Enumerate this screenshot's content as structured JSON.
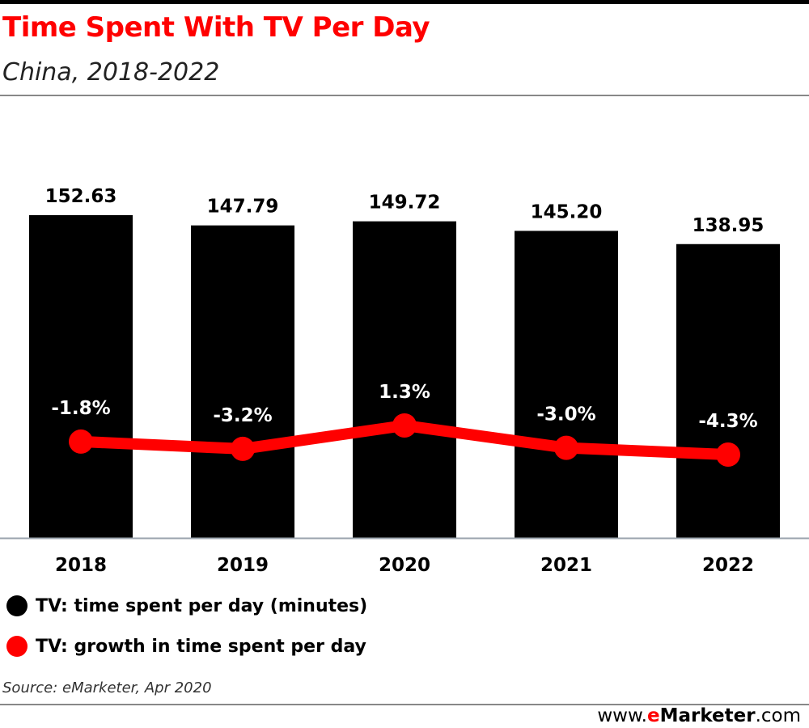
{
  "header": {
    "title": "Time Spent With TV Per Day",
    "subtitle": "China, 2018-2022"
  },
  "chart_data": {
    "type": "bar",
    "categories": [
      "2018",
      "2019",
      "2020",
      "2021",
      "2022"
    ],
    "series": [
      {
        "name": "TV: time spent per day (minutes)",
        "type": "bar",
        "values": [
          152.63,
          147.79,
          149.72,
          145.2,
          138.95
        ],
        "labels": [
          "152.63",
          "147.79",
          "149.72",
          "145.20",
          "138.95"
        ],
        "color": "#000000"
      },
      {
        "name": "TV: growth in time spent per day",
        "type": "line",
        "values": [
          -1.8,
          -3.2,
          1.3,
          -3.0,
          -4.3
        ],
        "labels": [
          "-1.8%",
          "-3.2%",
          "1.3%",
          "-3.0%",
          "-4.3%"
        ],
        "color": "#ff0000"
      }
    ],
    "ylim_bar": [
      0,
      152.63
    ],
    "ylim_line": [
      -4.3,
      1.3
    ],
    "grid": false,
    "legend_position": "bottom-left"
  },
  "legend": {
    "bar_label": "TV: time spent per day (minutes)",
    "line_label": "TV: growth in time spent per day"
  },
  "footer": {
    "source": "Source: eMarketer, Apr 2020",
    "brand_prefix": "www.",
    "brand_e": "e",
    "brand_name": "Marketer",
    "brand_suffix": ".com"
  }
}
